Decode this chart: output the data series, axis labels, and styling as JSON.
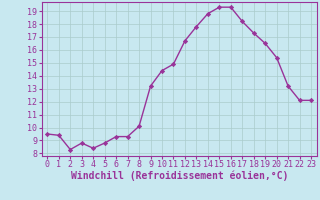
{
  "x": [
    0,
    1,
    2,
    3,
    4,
    5,
    6,
    7,
    8,
    9,
    10,
    11,
    12,
    13,
    14,
    15,
    16,
    17,
    18,
    19,
    20,
    21,
    22,
    23
  ],
  "y": [
    9.5,
    9.4,
    8.3,
    8.8,
    8.4,
    8.8,
    9.3,
    9.3,
    10.1,
    13.2,
    14.4,
    14.9,
    16.7,
    17.8,
    18.8,
    19.3,
    19.3,
    18.2,
    17.3,
    16.5,
    15.4,
    13.2,
    12.1,
    12.1
  ],
  "line_color": "#993399",
  "marker": "D",
  "marker_size": 2.2,
  "background_color": "#c8e8f0",
  "grid_color": "#aacccc",
  "xlabel": "Windchill (Refroidissement éolien,°C)",
  "xlim": [
    -0.5,
    23.5
  ],
  "ylim": [
    7.8,
    19.7
  ],
  "yticks": [
    8,
    9,
    10,
    11,
    12,
    13,
    14,
    15,
    16,
    17,
    18,
    19
  ],
  "xticks": [
    0,
    1,
    2,
    3,
    4,
    5,
    6,
    7,
    8,
    9,
    10,
    11,
    12,
    13,
    14,
    15,
    16,
    17,
    18,
    19,
    20,
    21,
    22,
    23
  ],
  "xlabel_fontsize": 7,
  "tick_fontsize": 6,
  "line_width": 1.0,
  "title_color": "#993399",
  "axis_line_color": "#993399"
}
